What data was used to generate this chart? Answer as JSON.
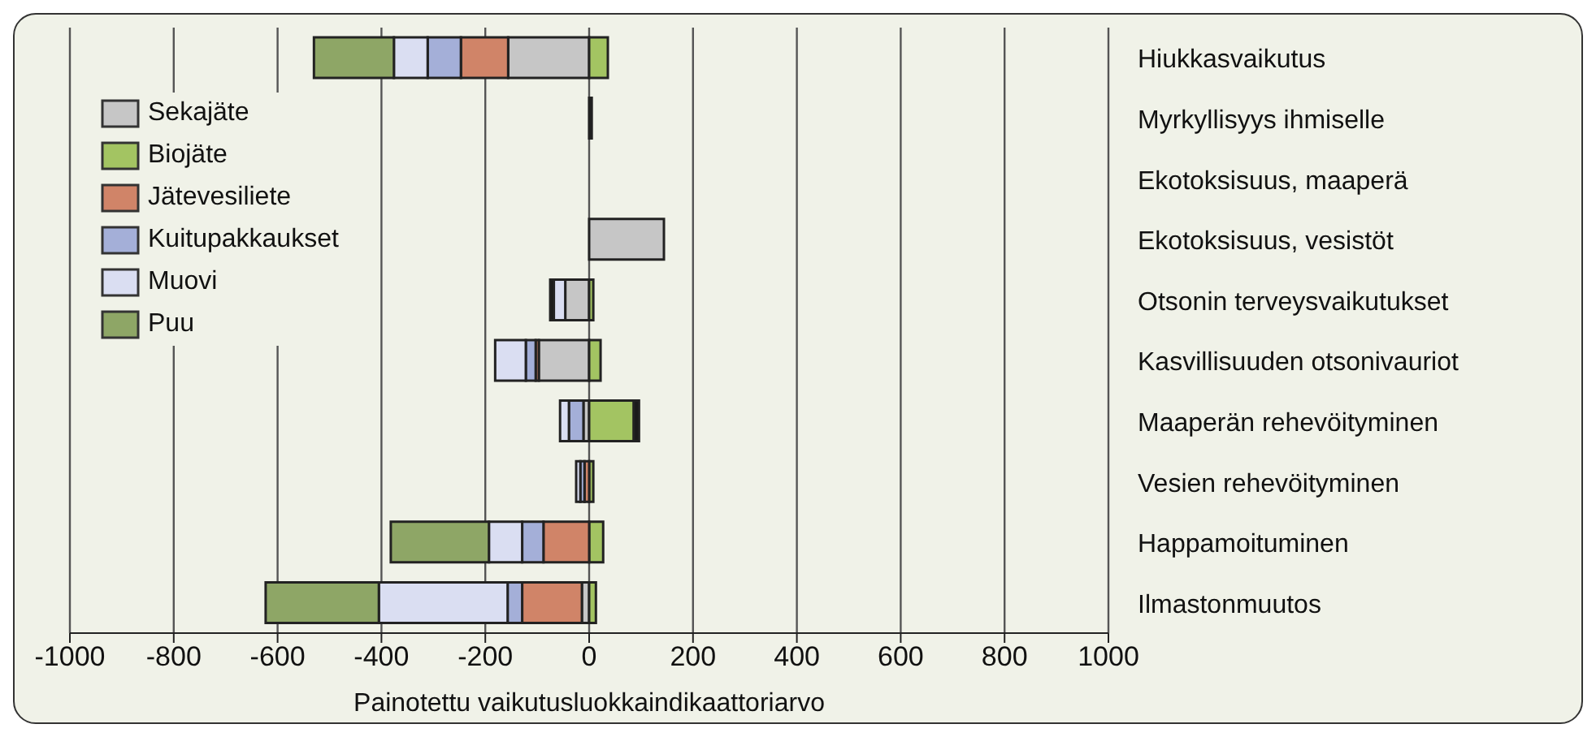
{
  "chart_data": {
    "type": "bar",
    "orientation": "horizontal",
    "stacked": true,
    "xlabel": "Painotettu vaikutusluokkaindikaattoriarvo",
    "categories": [
      "Hiukkasvaikutus",
      "Myrkyllisyys ihmiselle",
      "Ekotoksisuus, maaperä",
      "Ekotoksisuus, vesistöt",
      "Otsonin terveysvaikutukset",
      "Kasvillisuuden otsonivauriot",
      "Maaperän rehevöityminen",
      "Vesien rehevöityminen",
      "Happamoituminen",
      "Ilmastonmuutos"
    ],
    "series": [
      {
        "name": "Sekajäte",
        "color": "#c6c6c6",
        "values": [
          -156,
          null,
          null,
          144,
          -46,
          -97,
          -11,
          null,
          null,
          -14
        ]
      },
      {
        "name": "Biojäte",
        "color": "#a3c462",
        "values": [
          36,
          null,
          null,
          null,
          8,
          22,
          86,
          8,
          27,
          13
        ]
      },
      {
        "name": "Jätevesiliete",
        "color": "#d08468",
        "values": [
          -91,
          null,
          null,
          null,
          null,
          -6,
          null,
          -9,
          -88,
          -115
        ]
      },
      {
        "name": "Kuitupakkaukset",
        "color": "#a4afd8",
        "values": [
          -64,
          null,
          null,
          null,
          null,
          -19,
          -28,
          -8,
          -41,
          -28
        ]
      },
      {
        "name": "Muovi",
        "color": "#dadef2",
        "values": [
          -65,
          null,
          null,
          null,
          -22,
          -59,
          -17,
          -8,
          -64,
          -248
        ]
      },
      {
        "name": "Puu",
        "color": "#8ea666",
        "values": [
          -154,
          null,
          null,
          null,
          null,
          null,
          null,
          null,
          -189,
          -218
        ]
      },
      {
        "color": "#1a1a1a",
        "values": [
          null,
          5,
          null,
          null,
          -7,
          null,
          10,
          null,
          null,
          null
        ]
      }
    ],
    "xlim": [
      -1000,
      1000
    ],
    "xticks": [
      -1000,
      -800,
      -600,
      -400,
      -200,
      0,
      200,
      400,
      600,
      800,
      1000
    ],
    "grid": "x",
    "legend": "top left"
  }
}
